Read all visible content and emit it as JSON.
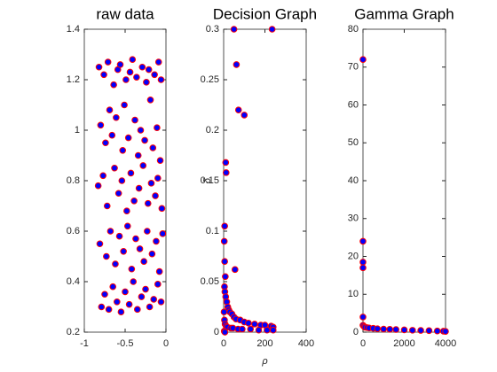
{
  "chart_data": [
    {
      "type": "scatter",
      "title": "raw data",
      "color": "#0000ff",
      "edgecolor": "#ff0000",
      "x": [
        -0.82,
        -0.76,
        -0.71,
        -0.64,
        -0.59,
        -0.56,
        -0.49,
        -0.44,
        -0.41,
        -0.36,
        -0.29,
        -0.24,
        -0.21,
        -0.14,
        -0.09,
        -0.06,
        -0.8,
        -0.74,
        -0.69,
        -0.66,
        -0.61,
        -0.53,
        -0.51,
        -0.46,
        -0.38,
        -0.34,
        -0.31,
        -0.26,
        -0.19,
        -0.16,
        -0.11,
        -0.07,
        -0.83,
        -0.77,
        -0.72,
        -0.63,
        -0.58,
        -0.54,
        -0.48,
        -0.43,
        -0.39,
        -0.33,
        -0.28,
        -0.22,
        -0.18,
        -0.13,
        -0.1,
        -0.05,
        -0.81,
        -0.73,
        -0.68,
        -0.62,
        -0.57,
        -0.52,
        -0.47,
        -0.42,
        -0.37,
        -0.32,
        -0.27,
        -0.23,
        -0.17,
        -0.12,
        -0.08,
        -0.04,
        -0.79,
        -0.75,
        -0.7,
        -0.65,
        -0.6,
        -0.55,
        -0.5,
        -0.45,
        -0.4,
        -0.35,
        -0.3,
        -0.25,
        -0.2,
        -0.15,
        -0.1,
        -0.06
      ],
      "values": [
        1.25,
        1.22,
        1.27,
        1.18,
        1.24,
        1.26,
        1.2,
        1.23,
        1.28,
        1.21,
        1.25,
        1.19,
        1.24,
        1.22,
        1.27,
        1.2,
        1.02,
        0.95,
        1.08,
        0.98,
        1.05,
        0.92,
        1.1,
        0.97,
        1.04,
        0.9,
        1.0,
        0.96,
        1.12,
        0.93,
        1.01,
        0.88,
        0.78,
        0.82,
        0.7,
        0.85,
        0.75,
        0.8,
        0.68,
        0.83,
        0.72,
        0.77,
        0.86,
        0.71,
        0.79,
        0.74,
        0.81,
        0.69,
        0.55,
        0.5,
        0.6,
        0.47,
        0.58,
        0.52,
        0.62,
        0.45,
        0.57,
        0.53,
        0.48,
        0.6,
        0.51,
        0.56,
        0.44,
        0.59,
        0.3,
        0.35,
        0.29,
        0.38,
        0.32,
        0.28,
        0.36,
        0.31,
        0.4,
        0.29,
        0.34,
        0.37,
        0.3,
        0.33,
        0.39,
        0.32
      ],
      "xlim": [
        -1,
        0
      ],
      "xticks": [
        -1,
        -0.5,
        0
      ],
      "ylim": [
        0.2,
        1.4
      ],
      "yticks": [
        0.2,
        0.4,
        0.6,
        0.8,
        1,
        1.2,
        1.4
      ]
    },
    {
      "type": "scatter",
      "title": "Decision Graph",
      "xlabel": "ρ",
      "ylabel": "δ",
      "color": "#0000ff",
      "edgecolor": "#ff0000",
      "x": [
        50,
        235,
        62,
        72,
        100,
        10,
        12,
        5,
        55,
        3,
        5,
        8,
        4,
        6,
        10,
        15,
        20,
        25,
        30,
        40,
        50,
        60,
        80,
        100,
        120,
        150,
        180,
        200,
        230,
        240,
        2,
        4,
        7,
        12,
        18,
        35,
        45,
        70,
        90,
        130,
        170,
        210,
        240,
        3,
        6
      ],
      "values": [
        0.3,
        0.3,
        0.265,
        0.22,
        0.215,
        0.168,
        0.158,
        0.105,
        0.062,
        0.09,
        0.07,
        0.055,
        0.045,
        0.04,
        0.035,
        0.03,
        0.025,
        0.022,
        0.02,
        0.018,
        0.015,
        0.013,
        0.012,
        0.01,
        0.009,
        0.008,
        0.007,
        0.007,
        0.006,
        0.005,
        0.02,
        0.012,
        0.008,
        0.006,
        0.005,
        0.004,
        0.004,
        0.003,
        0.003,
        0.003,
        0.002,
        0.002,
        0.002,
        0.001,
        0
      ],
      "xlim": [
        0,
        400
      ],
      "xticks": [
        0,
        200,
        400
      ],
      "ylim": [
        0,
        0.3
      ],
      "yticks": [
        0,
        0.05,
        0.1,
        0.15,
        0.2,
        0.25,
        0.3
      ]
    },
    {
      "type": "scatter",
      "title": "Gamma Graph",
      "color": "#0000ff",
      "edgecolor": "#ff0000",
      "x": [
        0,
        0,
        0,
        0,
        0,
        0,
        50,
        100,
        200,
        300,
        500,
        700,
        1000,
        1300,
        1600,
        2000,
        2400,
        2800,
        3200,
        3600,
        3900,
        4000
      ],
      "values": [
        72,
        24,
        18.5,
        17,
        4,
        1.8,
        1.5,
        1.3,
        1.2,
        1.1,
        1.0,
        0.9,
        0.8,
        0.75,
        0.7,
        0.6,
        0.5,
        0.45,
        0.4,
        0.3,
        0.25,
        0.2
      ],
      "xlim": [
        0,
        4000
      ],
      "xticks": [
        0,
        2000,
        4000
      ],
      "ylim": [
        0,
        80
      ],
      "yticks": [
        0,
        10,
        20,
        30,
        40,
        50,
        60,
        70,
        80
      ]
    }
  ]
}
